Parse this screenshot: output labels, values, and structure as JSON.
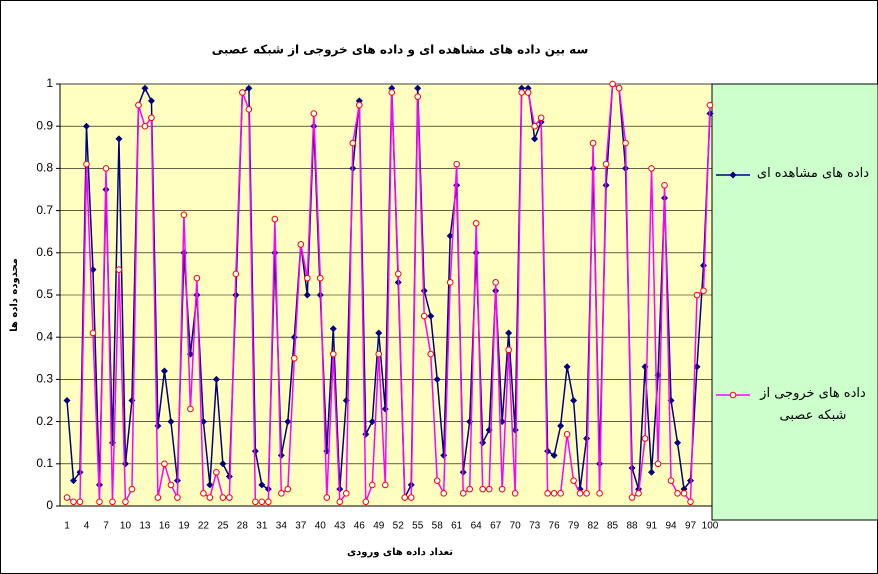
{
  "chart_data": {
    "type": "line",
    "title": "سه بین داده های مشاهده ای و داده های خروجی از شبکه عصبی",
    "x_label": "تعداد داده های ورودی",
    "y_label": "محدوده داده ها",
    "categories": [
      1,
      null,
      null,
      4,
      null,
      null,
      7,
      null,
      null,
      10,
      null,
      null,
      13,
      null,
      null,
      16,
      null,
      null,
      19,
      null,
      null,
      22,
      null,
      null,
      25,
      null,
      null,
      28,
      null,
      null,
      31,
      null,
      null,
      34,
      null,
      null,
      37,
      null,
      null,
      40,
      null,
      null,
      43,
      null,
      null,
      46,
      null,
      null,
      49,
      null,
      null,
      52,
      null,
      null,
      55,
      null,
      null,
      58,
      null,
      null,
      61,
      null,
      null,
      64,
      null,
      null,
      67,
      null,
      null,
      70,
      null,
      null,
      73,
      null,
      null,
      76,
      null,
      null,
      79,
      null,
      null,
      82,
      null,
      null,
      85,
      null,
      null,
      88,
      null,
      null,
      91,
      null,
      null,
      94,
      null,
      null,
      97,
      null,
      null,
      100
    ],
    "ylim": [
      0,
      1
    ],
    "yticks": [
      0,
      0.1,
      0.2,
      0.3,
      0.4,
      0.5,
      0.6,
      0.7,
      0.8,
      0.9,
      1
    ],
    "grid": true,
    "legend": "right",
    "series": [
      {
        "name": "داده های مشاهده ای",
        "color": "#000080",
        "marker": "diamond",
        "values": [
          0.25,
          0.06,
          0.08,
          0.9,
          0.56,
          0.05,
          0.75,
          0.15,
          0.87,
          0.1,
          0.25,
          0.95,
          0.99,
          0.96,
          0.19,
          0.32,
          0.2,
          0.06,
          0.6,
          0.36,
          0.5,
          0.2,
          0.05,
          0.3,
          0.1,
          0.07,
          0.5,
          0.98,
          0.99,
          0.13,
          0.05,
          0.04,
          0.6,
          0.12,
          0.2,
          0.4,
          0.62,
          0.5,
          0.9,
          0.5,
          0.13,
          0.42,
          0.04,
          0.25,
          0.8,
          0.96,
          0.17,
          0.2,
          0.41,
          0.23,
          0.99,
          0.53,
          0.02,
          0.05,
          0.99,
          0.51,
          0.45,
          0.3,
          0.12,
          0.64,
          0.76,
          0.08,
          0.2,
          0.6,
          0.15,
          0.18,
          0.51,
          0.2,
          0.41,
          0.18,
          0.99,
          0.99,
          0.87,
          0.91,
          0.13,
          0.12,
          0.19,
          0.33,
          0.25,
          0.04,
          0.16,
          0.8,
          0.1,
          0.76,
          1.0,
          0.99,
          0.8,
          0.09,
          0.04,
          0.33,
          0.08,
          0.31,
          0.73,
          0.25,
          0.15,
          0.04,
          0.06,
          0.33,
          0.57,
          0.93
        ]
      },
      {
        "name": "داده های خروجی از شبکه عصبی",
        "color": "#ff00ff",
        "marker": "circle",
        "values": [
          0.02,
          0.01,
          0.01,
          0.81,
          0.41,
          0.01,
          0.8,
          0.01,
          0.56,
          0.01,
          0.04,
          0.95,
          0.9,
          0.92,
          0.02,
          0.1,
          0.05,
          0.02,
          0.69,
          0.23,
          0.54,
          0.03,
          0.02,
          0.08,
          0.02,
          0.02,
          0.55,
          0.98,
          0.94,
          0.01,
          0.01,
          0.01,
          0.68,
          0.03,
          0.04,
          0.35,
          0.62,
          0.54,
          0.93,
          0.54,
          0.02,
          0.36,
          0.01,
          0.03,
          0.86,
          0.95,
          0.01,
          0.05,
          0.36,
          0.05,
          0.98,
          0.55,
          0.02,
          0.02,
          0.97,
          0.45,
          0.36,
          0.06,
          0.03,
          0.53,
          0.81,
          0.03,
          0.04,
          0.67,
          0.04,
          0.04,
          0.53,
          0.04,
          0.37,
          0.03,
          0.98,
          0.98,
          0.9,
          0.92,
          0.03,
          0.03,
          0.03,
          0.17,
          0.06,
          0.03,
          0.03,
          0.86,
          0.03,
          0.81,
          1.0,
          0.99,
          0.86,
          0.02,
          0.03,
          0.16,
          0.8,
          0.1,
          0.76,
          0.06,
          0.03,
          0.03,
          0.01,
          0.5,
          0.51,
          0.95
        ]
      }
    ]
  }
}
